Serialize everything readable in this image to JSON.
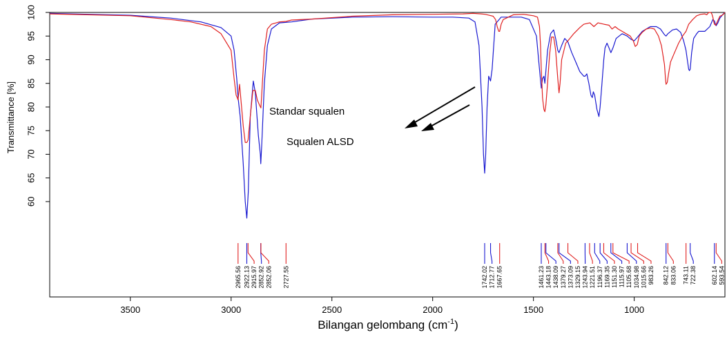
{
  "chart_data": {
    "type": "line",
    "xlabel": "Bilangan gelombang (cm",
    "xlabel_sup": "-1",
    "xlabel_end": ")",
    "ylabel": "Transmittance [%]",
    "xlim": [
      3900,
      550
    ],
    "ylim": [
      54,
      100
    ],
    "x_ticks": [
      3500,
      3000,
      2500,
      2000,
      1500,
      1000
    ],
    "y_ticks": [
      60,
      65,
      70,
      75,
      80,
      85,
      90,
      95,
      100
    ],
    "grid": false,
    "colors": {
      "standard": "#1818d0",
      "sample": "#e02020"
    },
    "annotations": [
      {
        "text": "Standar squalen",
        "series": "blue"
      },
      {
        "text": "Squalen ALSD",
        "series": "red"
      }
    ],
    "series": [
      {
        "color": "#1818d0",
        "points": [
          [
            3900,
            99.8
          ],
          [
            3500,
            99.4
          ],
          [
            3300,
            98.8
          ],
          [
            3150,
            98.0
          ],
          [
            3050,
            96.8
          ],
          [
            3000,
            95.0
          ],
          [
            2985,
            92.0
          ],
          [
            2972,
            86.0
          ],
          [
            2965.56,
            82.0
          ],
          [
            2955,
            78.0
          ],
          [
            2940,
            68.0
          ],
          [
            2930,
            60.0
          ],
          [
            2922.13,
            56.5
          ],
          [
            2915,
            62.0
          ],
          [
            2905,
            78.0
          ],
          [
            2890,
            85.5
          ],
          [
            2880,
            83.0
          ],
          [
            2865,
            74.0
          ],
          [
            2855,
            70.0
          ],
          [
            2852.92,
            68.0
          ],
          [
            2848,
            72.0
          ],
          [
            2835,
            85.0
          ],
          [
            2820,
            93.0
          ],
          [
            2800,
            96.5
          ],
          [
            2760,
            97.8
          ],
          [
            2700,
            98.0
          ],
          [
            2600,
            98.6
          ],
          [
            2400,
            99.0
          ],
          [
            2200,
            99.1
          ],
          [
            2000,
            99.0
          ],
          [
            1900,
            99.0
          ],
          [
            1820,
            98.8
          ],
          [
            1790,
            98.0
          ],
          [
            1770,
            93.0
          ],
          [
            1755,
            80.0
          ],
          [
            1748,
            70.0
          ],
          [
            1742.02,
            66.0
          ],
          [
            1737,
            70.0
          ],
          [
            1730,
            80.0
          ],
          [
            1722,
            86.5
          ],
          [
            1712.77,
            85.5
          ],
          [
            1705,
            88.0
          ],
          [
            1690,
            97.5
          ],
          [
            1660,
            99.0
          ],
          [
            1560,
            99.0
          ],
          [
            1520,
            98.5
          ],
          [
            1485,
            95.0
          ],
          [
            1470,
            88.0
          ],
          [
            1461.23,
            84.0
          ],
          [
            1455,
            86.0
          ],
          [
            1448,
            86.5
          ],
          [
            1443.18,
            85.0
          ],
          [
            1430,
            92.0
          ],
          [
            1415,
            95.5
          ],
          [
            1400,
            96.3
          ],
          [
            1390,
            94.5
          ],
          [
            1379.27,
            92.0
          ],
          [
            1373.09,
            91.5
          ],
          [
            1360,
            93.0
          ],
          [
            1345,
            94.5
          ],
          [
            1329.15,
            93.8
          ],
          [
            1310,
            91.5
          ],
          [
            1290,
            89.5
          ],
          [
            1270,
            87.5
          ],
          [
            1250,
            86.5
          ],
          [
            1243.94,
            86.5
          ],
          [
            1235,
            87.0
          ],
          [
            1225,
            85.0
          ],
          [
            1215,
            82.5
          ],
          [
            1208,
            82.0
          ],
          [
            1203,
            83.2
          ],
          [
            1196.37,
            82.5
          ],
          [
            1185,
            79.5
          ],
          [
            1175,
            78.0
          ],
          [
            1169.35,
            80.0
          ],
          [
            1160,
            85.0
          ],
          [
            1151.3,
            90.0
          ],
          [
            1145,
            92.5
          ],
          [
            1135,
            93.5
          ],
          [
            1125,
            92.5
          ],
          [
            1115.97,
            91.5
          ],
          [
            1105.68,
            92.5
          ],
          [
            1090,
            94.5
          ],
          [
            1060,
            95.5
          ],
          [
            1034.98,
            95.0
          ],
          [
            1015.66,
            94.3
          ],
          [
            1000,
            94.0
          ],
          [
            983.26,
            94.8
          ],
          [
            960,
            96.0
          ],
          [
            920,
            97.0
          ],
          [
            890,
            97.0
          ],
          [
            870,
            96.5
          ],
          [
            850,
            95.3
          ],
          [
            842.12,
            95.0
          ],
          [
            833.06,
            95.5
          ],
          [
            810,
            96.3
          ],
          [
            790,
            96.5
          ],
          [
            770,
            95.8
          ],
          [
            755,
            94.0
          ],
          [
            743.11,
            92.0
          ],
          [
            735,
            89.5
          ],
          [
            730,
            88.0
          ],
          [
            726,
            87.7
          ],
          [
            722.38,
            88.0
          ],
          [
            715,
            91.5
          ],
          [
            705,
            94.5
          ],
          [
            690,
            95.5
          ],
          [
            680,
            96.0
          ],
          [
            650,
            96.0
          ],
          [
            625,
            97.0
          ],
          [
            610,
            98.5
          ],
          [
            602.14,
            98.2
          ],
          [
            597,
            97.5
          ],
          [
            593.54,
            97.2
          ],
          [
            585,
            97.8
          ],
          [
            575,
            98.8
          ],
          [
            560,
            99.6
          ],
          [
            550,
            100.0
          ]
        ]
      },
      {
        "color": "#e02020",
        "points": [
          [
            3900,
            99.7
          ],
          [
            3500,
            99.3
          ],
          [
            3300,
            98.5
          ],
          [
            3200,
            98.0
          ],
          [
            3100,
            97.0
          ],
          [
            3050,
            95.5
          ],
          [
            3000,
            92.0
          ],
          [
            2985,
            86.0
          ],
          [
            2975,
            82.5
          ],
          [
            2968,
            81.8
          ],
          [
            2965.56,
            81.5
          ],
          [
            2958,
            84.8
          ],
          [
            2950,
            81.0
          ],
          [
            2940,
            76.0
          ],
          [
            2930,
            72.5
          ],
          [
            2922.13,
            72.5
          ],
          [
            2915.97,
            73.0
          ],
          [
            2905,
            78.0
          ],
          [
            2892,
            83.5
          ],
          [
            2880,
            83.5
          ],
          [
            2870,
            81.5
          ],
          [
            2860,
            80.5
          ],
          [
            2852.06,
            79.8
          ],
          [
            2845,
            85.0
          ],
          [
            2835,
            92.0
          ],
          [
            2820,
            96.5
          ],
          [
            2800,
            97.5
          ],
          [
            2760,
            98.0
          ],
          [
            2727.55,
            98.1
          ],
          [
            2700,
            98.4
          ],
          [
            2600,
            98.6
          ],
          [
            2400,
            99.2
          ],
          [
            2200,
            99.5
          ],
          [
            2000,
            99.6
          ],
          [
            1850,
            99.7
          ],
          [
            1800,
            99.8
          ],
          [
            1760,
            99.7
          ],
          [
            1740,
            99.6
          ],
          [
            1720,
            99.4
          ],
          [
            1700,
            99.2
          ],
          [
            1688,
            98.5
          ],
          [
            1680,
            97.0
          ],
          [
            1672,
            96.0
          ],
          [
            1667.65,
            96.0
          ],
          [
            1660,
            97.5
          ],
          [
            1650,
            98.5
          ],
          [
            1620,
            99.1
          ],
          [
            1600,
            99.5
          ],
          [
            1550,
            99.6
          ],
          [
            1500,
            99.3
          ],
          [
            1480,
            99.0
          ],
          [
            1470,
            97.0
          ],
          [
            1465,
            93.0
          ],
          [
            1461.23,
            88.0
          ],
          [
            1455,
            82.0
          ],
          [
            1448,
            79.5
          ],
          [
            1443.18,
            79.0
          ],
          [
            1438.09,
            80.5
          ],
          [
            1430,
            85.0
          ],
          [
            1420,
            91.0
          ],
          [
            1410,
            94.8
          ],
          [
            1400,
            94.8
          ],
          [
            1390,
            92.0
          ],
          [
            1379.27,
            86.0
          ],
          [
            1373.09,
            83.0
          ],
          [
            1368,
            85.0
          ],
          [
            1360,
            90.0
          ],
          [
            1340,
            93.5
          ],
          [
            1325,
            94.2
          ],
          [
            1300,
            95.5
          ],
          [
            1270,
            96.8
          ],
          [
            1250,
            97.5
          ],
          [
            1220,
            97.8
          ],
          [
            1200,
            97.0
          ],
          [
            1180,
            97.8
          ],
          [
            1150,
            97.5
          ],
          [
            1125,
            97.3
          ],
          [
            1110,
            96.5
          ],
          [
            1095,
            97.0
          ],
          [
            1080,
            96.5
          ],
          [
            1060,
            96.0
          ],
          [
            1040,
            95.5
          ],
          [
            1020,
            95.0
          ],
          [
            1005,
            94.0
          ],
          [
            995,
            92.8
          ],
          [
            985,
            93.2
          ],
          [
            975,
            95.0
          ],
          [
            960,
            95.8
          ],
          [
            940,
            96.5
          ],
          [
            920,
            96.7
          ],
          [
            900,
            96.5
          ],
          [
            880,
            95.0
          ],
          [
            865,
            93.0
          ],
          [
            850,
            89.0
          ],
          [
            845,
            86.0
          ],
          [
            842.12,
            84.8
          ],
          [
            836,
            85.2
          ],
          [
            830,
            87.0
          ],
          [
            820,
            89.5
          ],
          [
            800,
            91.5
          ],
          [
            780,
            93.5
          ],
          [
            760,
            95.0
          ],
          [
            743.11,
            96.0
          ],
          [
            730,
            97.5
          ],
          [
            710,
            98.5
          ],
          [
            690,
            99.3
          ],
          [
            670,
            99.6
          ],
          [
            650,
            99.7
          ],
          [
            640,
            99.5
          ],
          [
            630,
            100.0
          ],
          [
            620,
            100.0
          ],
          [
            615,
            99.7
          ],
          [
            610,
            99.0
          ],
          [
            605,
            98.0
          ],
          [
            602.14,
            97.5
          ],
          [
            596,
            97.3
          ],
          [
            593.54,
            97.5
          ],
          [
            585,
            98.3
          ],
          [
            575,
            99.2
          ],
          [
            560,
            99.5
          ],
          [
            550,
            100.0
          ]
        ]
      }
    ],
    "peak_markers": [
      {
        "label": "2965.56",
        "x": 2965.56,
        "color": "#e02020"
      },
      {
        "label": "2922.13",
        "x": 2922.13,
        "color": "#1818d0"
      },
      {
        "label": "2915.97",
        "x": 2915.97,
        "color": "#e02020"
      },
      {
        "label": "2852.92",
        "x": 2852.92,
        "color": "#1818d0"
      },
      {
        "label": "2852.06",
        "x": 2852.06,
        "color": "#e02020"
      },
      {
        "label": "2727.55",
        "x": 2727.55,
        "color": "#e02020"
      },
      {
        "label": "1742.02",
        "x": 1742.02,
        "color": "#1818d0"
      },
      {
        "label": "1712.77",
        "x": 1712.77,
        "color": "#1818d0"
      },
      {
        "label": "1667.65",
        "x": 1667.65,
        "color": "#e02020"
      },
      {
        "label": "1461.23",
        "x": 1461.23,
        "color": "#1818d0"
      },
      {
        "label": "1443.18",
        "x": 1443.18,
        "color": "#e02020"
      },
      {
        "label": "1438.09",
        "x": 1438.09,
        "color": "#1818d0"
      },
      {
        "label": "1379.27",
        "x": 1379.27,
        "color": "#e02020"
      },
      {
        "label": "1373.09",
        "x": 1373.09,
        "color": "#1818d0"
      },
      {
        "label": "1329.15",
        "x": 1329.15,
        "color": "#e02020"
      },
      {
        "label": "1243.94",
        "x": 1243.94,
        "color": "#1818d0"
      },
      {
        "label": "1221.51",
        "x": 1221.51,
        "color": "#e02020"
      },
      {
        "label": "1196.37",
        "x": 1196.37,
        "color": "#1818d0"
      },
      {
        "label": "1169.35",
        "x": 1169.35,
        "color": "#1818d0"
      },
      {
        "label": "1151.30",
        "x": 1151.3,
        "color": "#e02020"
      },
      {
        "label": "1115.97",
        "x": 1115.97,
        "color": "#1818d0"
      },
      {
        "label": "1105.68",
        "x": 1105.68,
        "color": "#e02020"
      },
      {
        "label": "1034.98",
        "x": 1034.98,
        "color": "#1818d0"
      },
      {
        "label": "1015.66",
        "x": 1015.66,
        "color": "#e02020"
      },
      {
        "label": "983.26",
        "x": 983.26,
        "color": "#e02020"
      },
      {
        "label": "842.12",
        "x": 842.12,
        "color": "#1818d0"
      },
      {
        "label": "833.06",
        "x": 833.06,
        "color": "#e02020"
      },
      {
        "label": "743.11",
        "x": 743.11,
        "color": "#e02020"
      },
      {
        "label": "722.38",
        "x": 722.38,
        "color": "#1818d0"
      },
      {
        "label": "602.14",
        "x": 602.14,
        "color": "#1818d0"
      },
      {
        "label": "593.54",
        "x": 593.54,
        "color": "#e02020"
      }
    ]
  }
}
